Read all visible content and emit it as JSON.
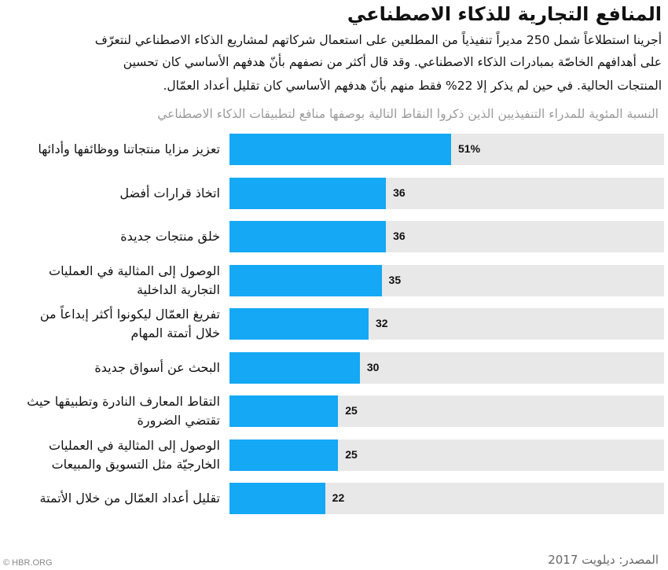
{
  "header": {
    "title": "المنافع التجارية للذكاء الاصطناعي",
    "paragraph_lines": [
      "أجرينا استطلاعاً شمل 250 مديراً تنفيذياً من المطلعين على استعمال شركاتهم لمشاريع الذكاء الاصطناعي لنتعرّف",
      "على أهدافهم الخاصّة بمبادرات الذكاء الاصطناعي. وقد قال أكثر من نصفهم بأنّ هدفهم الأساسي كان تحسين",
      "المنتجات الحالية. في حين لم يذكر إلا 22% فقط منهم بأنّ هدفهم الأساسي كان تقليل أعداد العمّال."
    ]
  },
  "chart_data": {
    "type": "bar",
    "orientation": "horizontal",
    "title": "المنافع التجارية للذكاء الاصطناعي",
    "subtitle": "النسبة المئوية للمدراء التنفيذيين الذين ذكروا النقاط التالية بوصفها منافع لتطبيقات الذكاء الاصطناعي",
    "categories": [
      "تعزيز مزايا منتجاتنا ووظائفها وأدائها",
      "اتخاذ قرارات أفضل",
      "خلق منتجات جديدة",
      "الوصول إلى المثالية في العمليات\nالتجارية الداخلية",
      "تفريغ العمّال ليكونوا أكثر إبداعاً من\nخلال أتمتة المهام",
      "البحث عن أسواق جديدة",
      "التقاط المعارف النادرة وتطبيقها حيث\nتقتضي الضرورة",
      "الوصول إلى المثالية في العمليات\nالخارجيّة مثل التسويق والمبيعات",
      "تقليل أعداد العمّال من خلال الأتمتة"
    ],
    "values": [
      51,
      36,
      36,
      35,
      32,
      30,
      25,
      25,
      22
    ],
    "value_labels": [
      "51%",
      "36",
      "36",
      "35",
      "32",
      "30",
      "25",
      "25",
      "22"
    ],
    "xlim": [
      0,
      100
    ],
    "color": "#14a8f5",
    "track_color": "#e8e8e8"
  },
  "footer": {
    "source": "المصدر: ديلويت 2017",
    "logo": "© HBR.ORG"
  }
}
